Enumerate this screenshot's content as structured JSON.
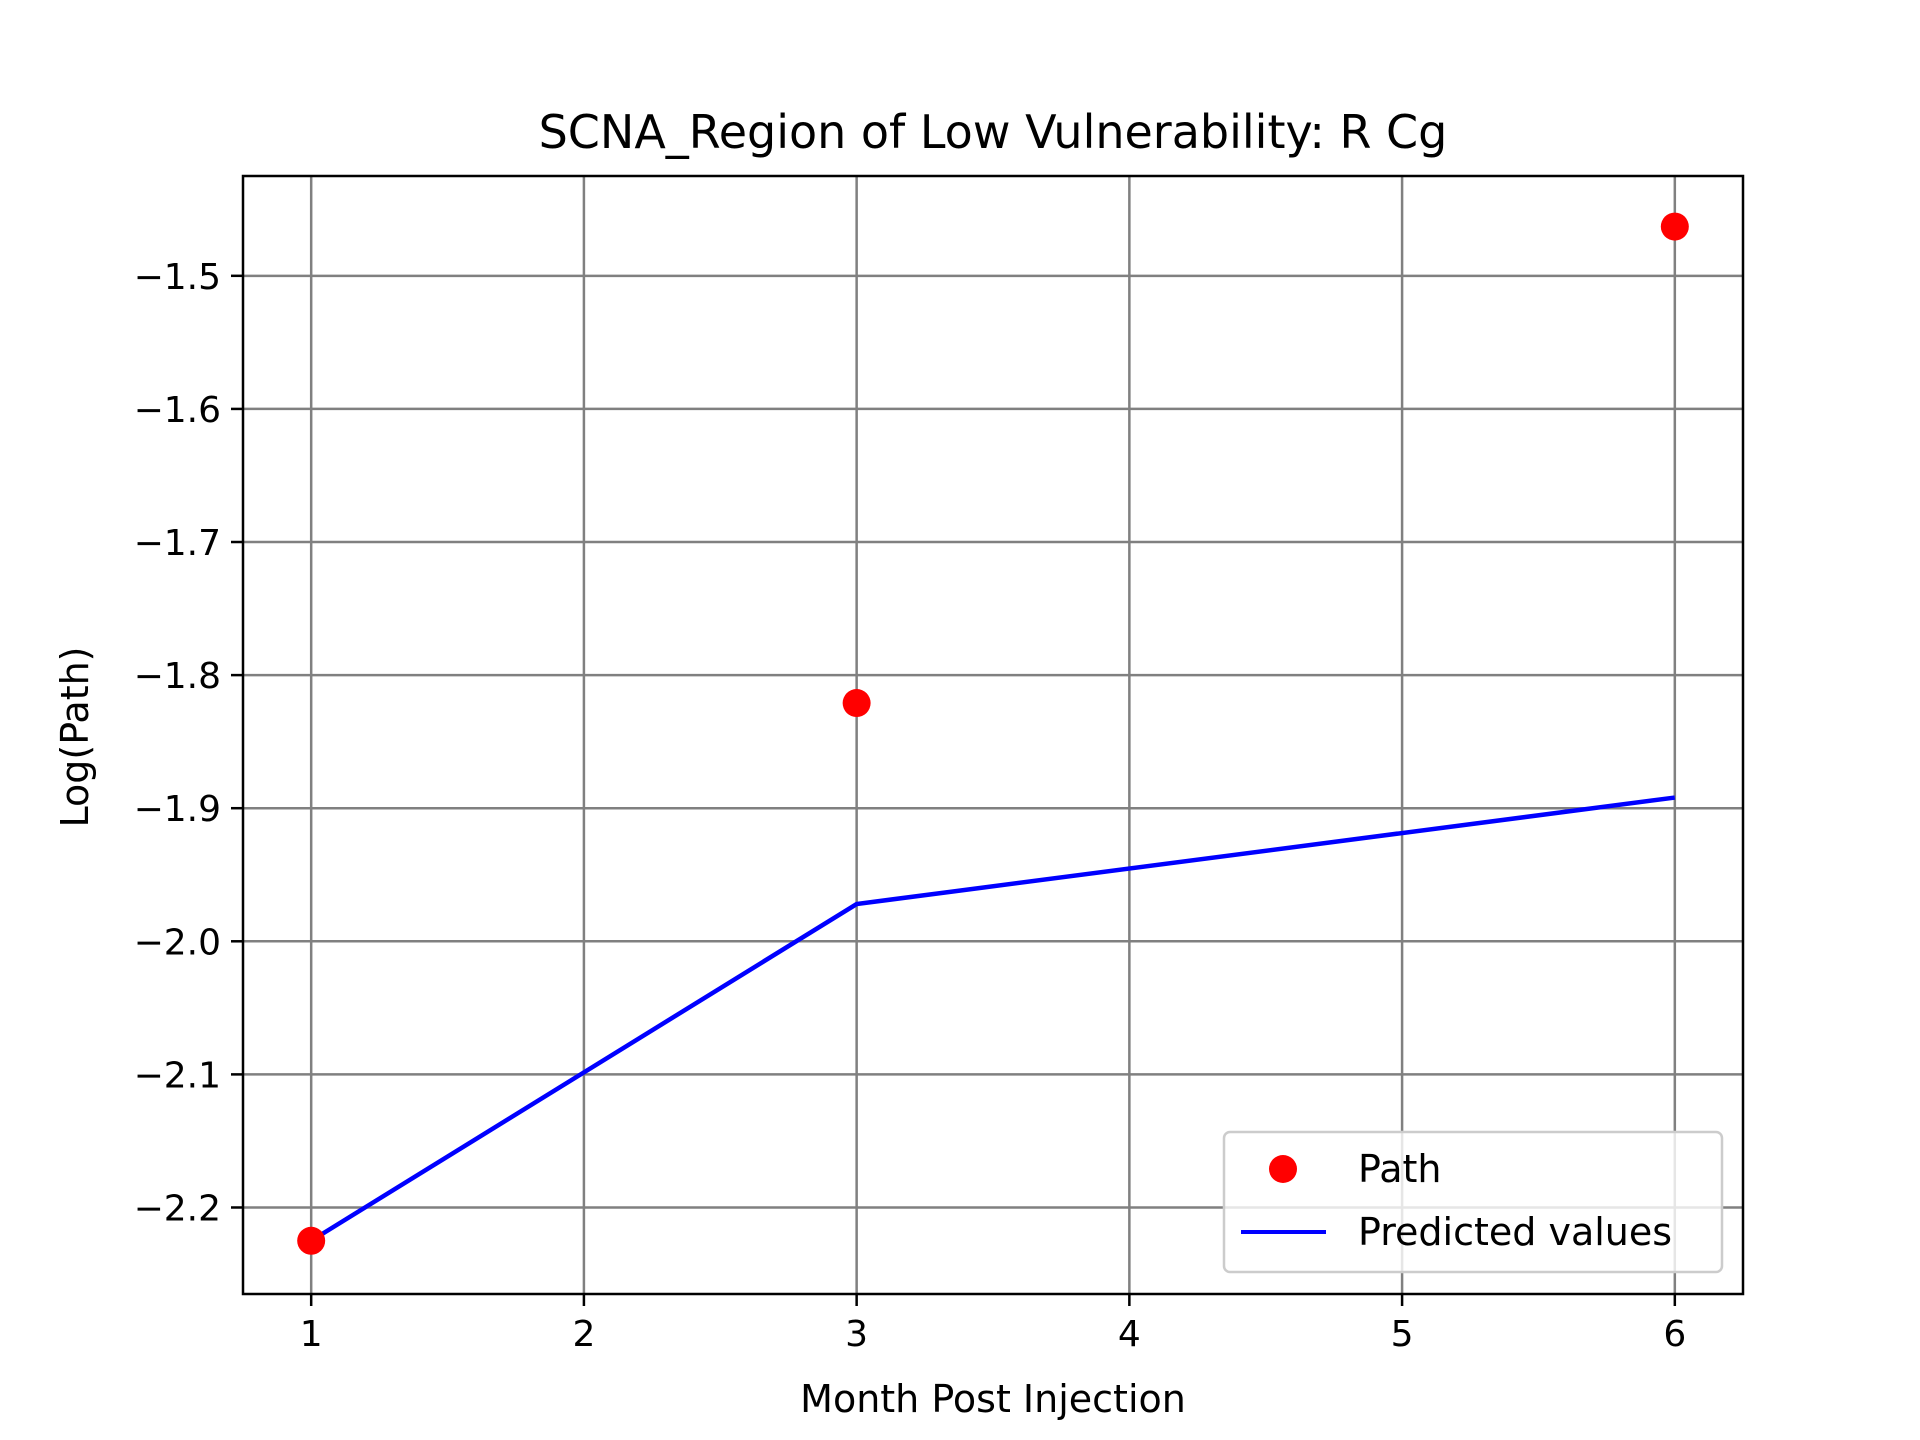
{
  "chart_data": {
    "type": "scatter",
    "title": "SCNA_Region of Low Vulnerability: R Cg",
    "xlabel": "Month Post Injection",
    "ylabel": "Log(Path)",
    "xlim": [
      0.75,
      6.25
    ],
    "ylim": [
      -2.265,
      -1.425
    ],
    "x_ticks": [
      1,
      2,
      3,
      4,
      5,
      6
    ],
    "y_ticks": [
      -2.2,
      -2.1,
      -2.0,
      -1.9,
      -1.8,
      -1.7,
      -1.6,
      -1.5
    ],
    "x_tick_labels": [
      "1",
      "2",
      "3",
      "4",
      "5",
      "6"
    ],
    "y_tick_labels": [
      "−2.2",
      "−2.1",
      "−2.0",
      "−1.9",
      "−1.8",
      "−1.7",
      "−1.6",
      "−1.5"
    ],
    "grid": true,
    "legend_position": "lower-right",
    "series": [
      {
        "name": "Path",
        "kind": "scatter",
        "color": "#ff0000",
        "x": [
          1,
          3,
          6
        ],
        "y": [
          -2.225,
          -1.821,
          -1.463
        ]
      },
      {
        "name": "Predicted values",
        "kind": "line",
        "color": "#0000ff",
        "x": [
          1,
          3,
          6
        ],
        "y": [
          -2.225,
          -1.972,
          -1.892
        ]
      }
    ]
  }
}
